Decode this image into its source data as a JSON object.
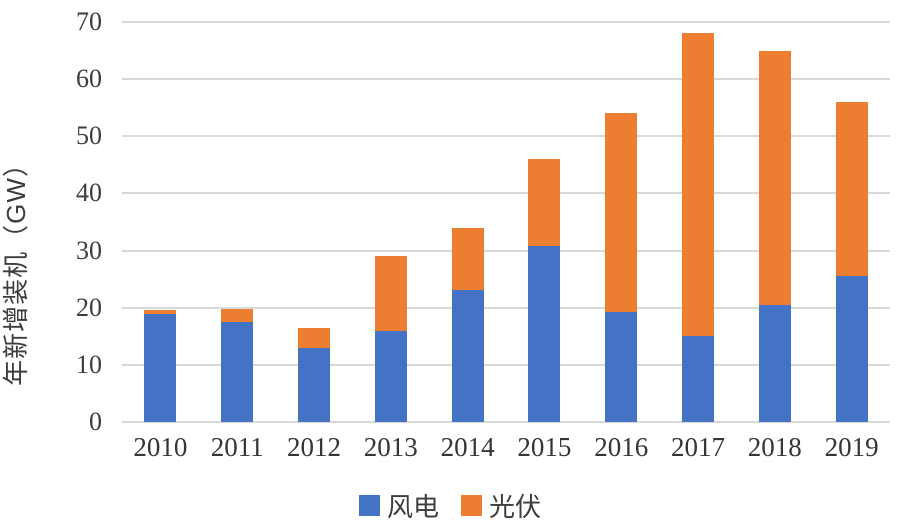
{
  "chart_data": {
    "type": "bar",
    "stacked": true,
    "categories": [
      "2010",
      "2011",
      "2012",
      "2013",
      "2014",
      "2015",
      "2016",
      "2017",
      "2018",
      "2019"
    ],
    "series": [
      {
        "name": "风电",
        "color": "#4472C4",
        "values": [
          18.9,
          17.5,
          12.9,
          16.0,
          23.1,
          30.8,
          19.3,
          15.0,
          20.5,
          25.6
        ]
      },
      {
        "name": "光伏",
        "color": "#ED7D31",
        "values": [
          0.7,
          2.2,
          3.6,
          13.0,
          10.9,
          15.2,
          34.7,
          53.0,
          44.5,
          30.4
        ]
      }
    ],
    "totals": [
      19.6,
      19.7,
      16.5,
      29.0,
      34.0,
      46.0,
      54.0,
      68.0,
      65.0,
      56.0
    ],
    "ylabel": "年新增装机（GW）",
    "ylim": [
      0,
      70
    ],
    "yticks": [
      0,
      10,
      20,
      30,
      40,
      50,
      60,
      70
    ],
    "grid": "horizontal",
    "gridline_color": "#d9d9d9",
    "legend_position": "bottom"
  }
}
